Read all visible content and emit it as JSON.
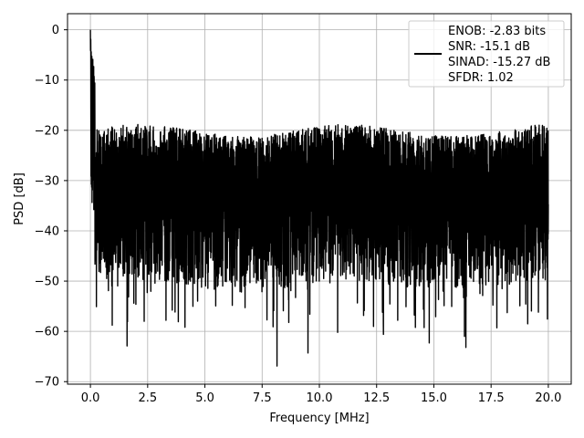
{
  "chart_data": {
    "type": "line",
    "xlabel": "Frequency [MHz]",
    "ylabel": "PSD [dB]",
    "xlim": [
      -1.0,
      21.0
    ],
    "ylim": [
      -70.5,
      3.2
    ],
    "xticks": [
      0.0,
      2.5,
      5.0,
      7.5,
      10.0,
      12.5,
      15.0,
      17.5,
      20.0
    ],
    "xtick_labels": [
      "0.0",
      "2.5",
      "5.0",
      "7.5",
      "10.0",
      "12.5",
      "15.0",
      "17.5",
      "20.0"
    ],
    "yticks": [
      0,
      -10,
      -20,
      -30,
      -40,
      -50,
      -60,
      -70
    ],
    "ytick_labels": [
      "0",
      "−10",
      "−20",
      "−30",
      "−40",
      "−50",
      "−60",
      "−70"
    ],
    "grid": true,
    "legend_position": "top-right",
    "series": [
      {
        "name": "ENOB: -2.83 bits\nSNR: -15.1 dB\nSINAD: -15.27 dB\nSFDR: 1.02",
        "color": "#000000",
        "description_points": {
          "x": [
            0.0,
            0.02,
            0.05,
            0.1,
            0.2,
            0.4,
            0.8,
            1.6,
            2.5,
            4.0,
            6.0,
            8.0,
            10.0,
            12.0,
            14.0,
            16.0,
            18.0,
            20.0
          ],
          "y": [
            0,
            -5,
            -10,
            -13,
            -15,
            -18,
            -20,
            -21,
            -22,
            -22,
            -22,
            -22,
            -22,
            -22,
            -22,
            -22,
            -22,
            -23
          ]
        },
        "noise_floor_center": -32,
        "min_dips": [
          {
            "x": 1.6,
            "y": -62.9
          },
          {
            "x": 2.35,
            "y": -58.0
          },
          {
            "x": 3.3,
            "y": -57.8
          },
          {
            "x": 8.15,
            "y": -66.9
          },
          {
            "x": 9.5,
            "y": -64.3
          },
          {
            "x": 10.8,
            "y": -60.2
          },
          {
            "x": 12.8,
            "y": -60.6
          },
          {
            "x": 14.8,
            "y": -62.3
          },
          {
            "x": 16.4,
            "y": -63.2
          },
          {
            "x": 17.75,
            "y": -59.3
          },
          {
            "x": 19.1,
            "y": -58.5
          }
        ]
      }
    ]
  }
}
